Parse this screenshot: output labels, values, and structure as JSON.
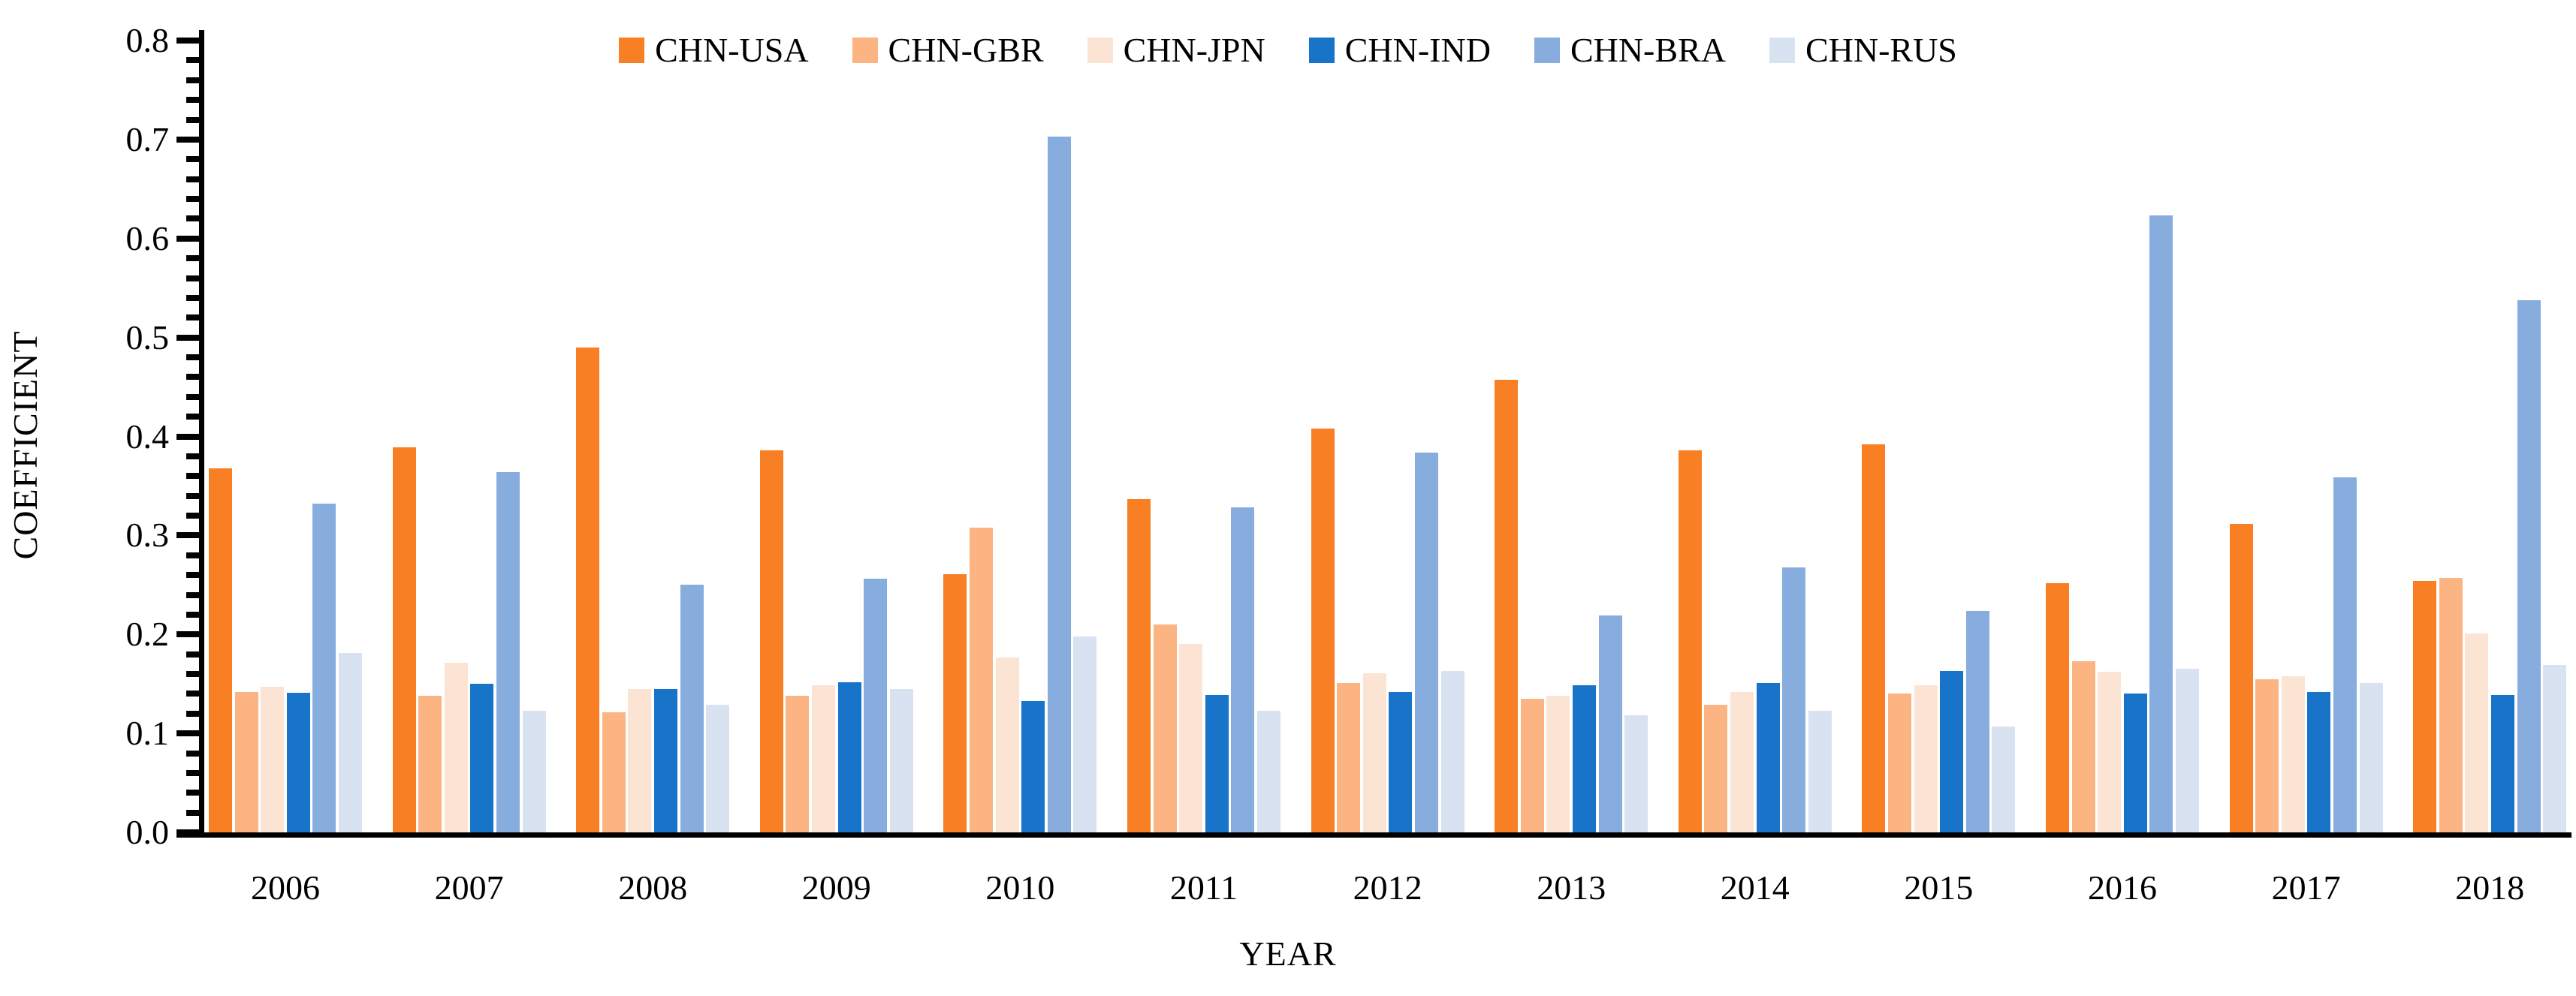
{
  "chart_data": {
    "type": "bar",
    "title": "",
    "xlabel": "YEAR",
    "ylabel": "COEFFICIENT",
    "ylim": [
      0,
      0.8
    ],
    "y_major_tick_step": 0.1,
    "y_minor_tick_step": 0.02,
    "y_tick_decimals": 1,
    "grid": false,
    "legend_position": "top-center",
    "background_color": "#ffffff",
    "axis_color": "#000000",
    "categories": [
      "2006",
      "2007",
      "2008",
      "2009",
      "2010",
      "2011",
      "2012",
      "2013",
      "2014",
      "2015",
      "2016",
      "2017",
      "2018"
    ],
    "series": [
      {
        "name": "CHN-USA",
        "color": "#F87F23",
        "values": [
          0.368,
          0.389,
          0.49,
          0.386,
          0.261,
          0.337,
          0.408,
          0.457,
          0.386,
          0.392,
          0.252,
          0.312,
          0.254
        ]
      },
      {
        "name": "CHN-GBR",
        "color": "#FBB482",
        "values": [
          0.142,
          0.138,
          0.121,
          0.138,
          0.308,
          0.21,
          0.151,
          0.135,
          0.129,
          0.14,
          0.173,
          0.155,
          0.257
        ]
      },
      {
        "name": "CHN-JPN",
        "color": "#FCE4D4",
        "values": [
          0.147,
          0.171,
          0.145,
          0.149,
          0.177,
          0.19,
          0.161,
          0.138,
          0.142,
          0.149,
          0.162,
          0.158,
          0.201
        ]
      },
      {
        "name": "CHN-IND",
        "color": "#1874C9",
        "values": [
          0.141,
          0.15,
          0.145,
          0.152,
          0.133,
          0.139,
          0.142,
          0.149,
          0.151,
          0.163,
          0.14,
          0.142,
          0.139
        ]
      },
      {
        "name": "CHN-BRA",
        "color": "#87ACDE",
        "values": [
          0.332,
          0.364,
          0.25,
          0.256,
          0.703,
          0.328,
          0.384,
          0.219,
          0.268,
          0.224,
          0.623,
          0.359,
          0.538
        ]
      },
      {
        "name": "CHN-RUS",
        "color": "#D9E2F1",
        "values": [
          0.181,
          0.123,
          0.129,
          0.145,
          0.198,
          0.123,
          0.163,
          0.118,
          0.123,
          0.107,
          0.165,
          0.151,
          0.169
        ]
      }
    ]
  }
}
